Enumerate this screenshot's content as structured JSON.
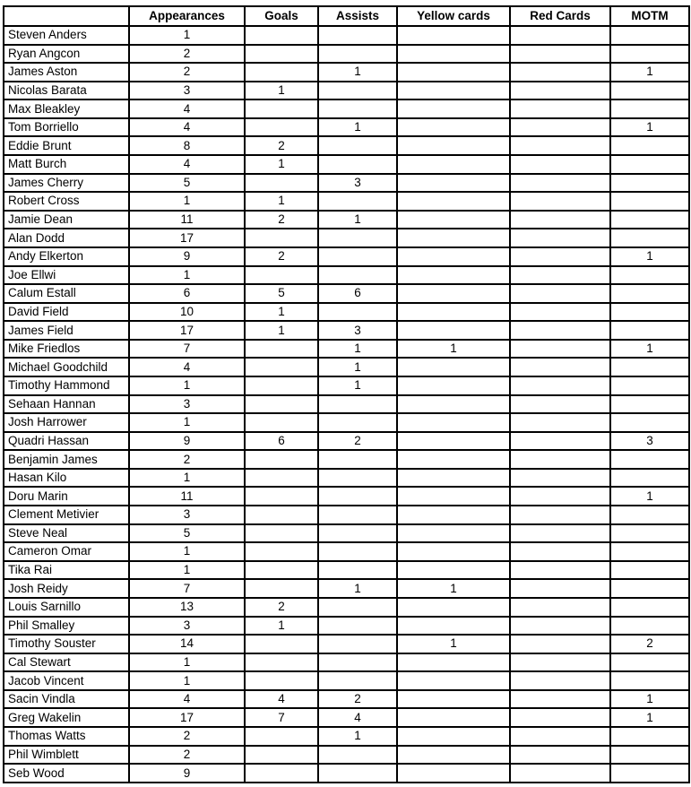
{
  "table": {
    "columns": [
      "",
      "Appearances",
      "Goals",
      "Assists",
      "Yellow cards",
      "Red Cards",
      "MOTM"
    ],
    "rows": [
      [
        "Steven Anders",
        "1",
        "",
        "",
        "",
        "",
        ""
      ],
      [
        "Ryan Angcon",
        "2",
        "",
        "",
        "",
        "",
        ""
      ],
      [
        "James Aston",
        "2",
        "",
        "1",
        "",
        "",
        "1"
      ],
      [
        "Nicolas Barata",
        "3",
        "1",
        "",
        "",
        "",
        ""
      ],
      [
        "Max Bleakley",
        "4",
        "",
        "",
        "",
        "",
        ""
      ],
      [
        "Tom Borriello",
        "4",
        "",
        "1",
        "",
        "",
        "1"
      ],
      [
        "Eddie Brunt",
        "8",
        "2",
        "",
        "",
        "",
        ""
      ],
      [
        "Matt Burch",
        "4",
        "1",
        "",
        "",
        "",
        ""
      ],
      [
        "James Cherry",
        "5",
        "",
        "3",
        "",
        "",
        ""
      ],
      [
        "Robert Cross",
        "1",
        "1",
        "",
        "",
        "",
        ""
      ],
      [
        "Jamie Dean",
        "11",
        "2",
        "1",
        "",
        "",
        ""
      ],
      [
        "Alan Dodd",
        "17",
        "",
        "",
        "",
        "",
        ""
      ],
      [
        "Andy Elkerton",
        "9",
        "2",
        "",
        "",
        "",
        "1"
      ],
      [
        "Joe Ellwi",
        "1",
        "",
        "",
        "",
        "",
        ""
      ],
      [
        "Calum Estall",
        "6",
        "5",
        "6",
        "",
        "",
        ""
      ],
      [
        "David Field",
        "10",
        "1",
        "",
        "",
        "",
        ""
      ],
      [
        "James Field",
        "17",
        "1",
        "3",
        "",
        "",
        ""
      ],
      [
        "Mike Friedlos",
        "7",
        "",
        "1",
        "1",
        "",
        "1"
      ],
      [
        "Michael Goodchild",
        "4",
        "",
        "1",
        "",
        "",
        ""
      ],
      [
        "Timothy Hammond",
        "1",
        "",
        "1",
        "",
        "",
        ""
      ],
      [
        "Sehaan Hannan",
        "3",
        "",
        "",
        "",
        "",
        ""
      ],
      [
        "Josh Harrower",
        "1",
        "",
        "",
        "",
        "",
        ""
      ],
      [
        "Quadri Hassan",
        "9",
        "6",
        "2",
        "",
        "",
        "3"
      ],
      [
        "Benjamin James",
        "2",
        "",
        "",
        "",
        "",
        ""
      ],
      [
        "Hasan Kilo",
        "1",
        "",
        "",
        "",
        "",
        ""
      ],
      [
        "Doru Marin",
        "11",
        "",
        "",
        "",
        "",
        "1"
      ],
      [
        "Clement Metivier",
        "3",
        "",
        "",
        "",
        "",
        ""
      ],
      [
        "Steve Neal",
        "5",
        "",
        "",
        "",
        "",
        ""
      ],
      [
        "Cameron Omar",
        "1",
        "",
        "",
        "",
        "",
        ""
      ],
      [
        "Tika Rai",
        "1",
        "",
        "",
        "",
        "",
        ""
      ],
      [
        "Josh Reidy",
        "7",
        "",
        "1",
        "1",
        "",
        ""
      ],
      [
        "Louis Sarnillo",
        "13",
        "2",
        "",
        "",
        "",
        ""
      ],
      [
        "Phil Smalley",
        "3",
        "1",
        "",
        "",
        "",
        ""
      ],
      [
        "Timothy Souster",
        "14",
        "",
        "",
        "1",
        "",
        "2"
      ],
      [
        "Cal Stewart",
        "1",
        "",
        "",
        "",
        "",
        ""
      ],
      [
        "Jacob Vincent",
        "1",
        "",
        "",
        "",
        "",
        ""
      ],
      [
        "Sacin Vindla",
        "4",
        "4",
        "2",
        "",
        "",
        "1"
      ],
      [
        "Greg Wakelin",
        "17",
        "7",
        "4",
        "",
        "",
        "1"
      ],
      [
        "Thomas Watts",
        "2",
        "",
        "1",
        "",
        "",
        ""
      ],
      [
        "Phil Wimblett",
        "2",
        "",
        "",
        "",
        "",
        ""
      ],
      [
        "Seb Wood",
        "9",
        "",
        "",
        "",
        "",
        ""
      ]
    ]
  }
}
